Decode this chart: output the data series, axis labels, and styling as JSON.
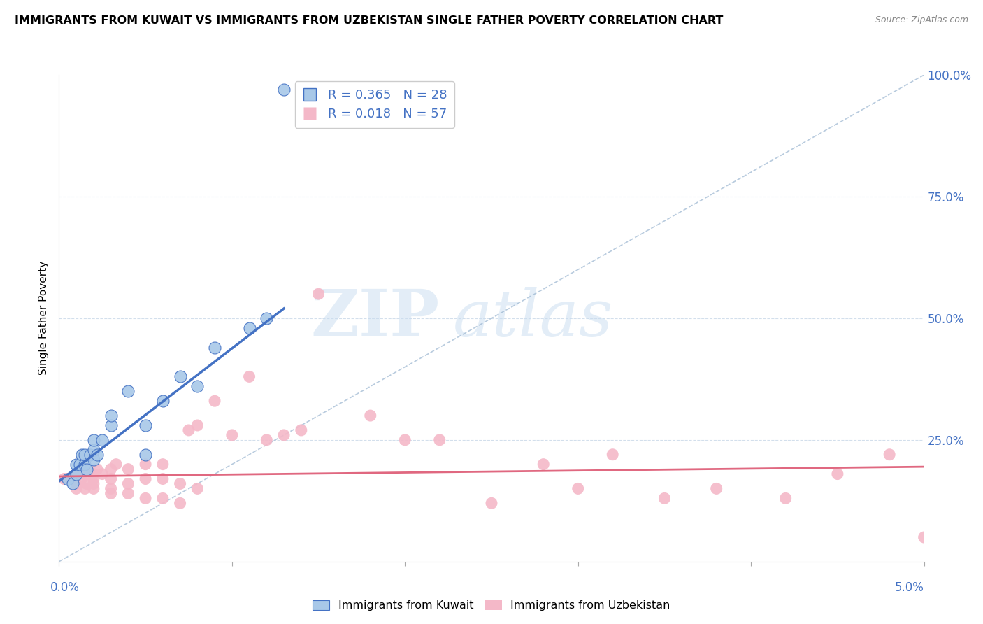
{
  "title": "IMMIGRANTS FROM KUWAIT VS IMMIGRANTS FROM UZBEKISTAN SINGLE FATHER POVERTY CORRELATION CHART",
  "source": "Source: ZipAtlas.com",
  "ylabel": "Single Father Poverty",
  "color_kuwait": "#a8c8e8",
  "color_uzbekistan": "#f4b8c8",
  "color_kuwait_line": "#4472c4",
  "color_uzbekistan_line": "#e06880",
  "color_blue_text": "#4472c4",
  "watermark_zip": "ZIP",
  "watermark_atlas": "atlas",
  "kuwait_x": [
    0.0005,
    0.0008,
    0.001,
    0.001,
    0.0012,
    0.0013,
    0.0015,
    0.0015,
    0.0016,
    0.0018,
    0.002,
    0.002,
    0.002,
    0.0022,
    0.0025,
    0.003,
    0.003,
    0.004,
    0.005,
    0.005,
    0.006,
    0.007,
    0.008,
    0.009,
    0.011,
    0.012,
    0.013,
    0.014
  ],
  "kuwait_y": [
    0.17,
    0.16,
    0.18,
    0.2,
    0.2,
    0.22,
    0.2,
    0.22,
    0.19,
    0.22,
    0.21,
    0.23,
    0.25,
    0.22,
    0.25,
    0.28,
    0.3,
    0.35,
    0.22,
    0.28,
    0.33,
    0.38,
    0.36,
    0.44,
    0.48,
    0.5,
    0.97,
    0.97
  ],
  "uzbekistan_x": [
    0.0003,
    0.0005,
    0.0006,
    0.0007,
    0.001,
    0.001,
    0.001,
    0.0012,
    0.0013,
    0.0015,
    0.0016,
    0.0017,
    0.002,
    0.002,
    0.002,
    0.002,
    0.0022,
    0.0025,
    0.003,
    0.003,
    0.003,
    0.003,
    0.0033,
    0.004,
    0.004,
    0.004,
    0.005,
    0.005,
    0.005,
    0.006,
    0.006,
    0.006,
    0.007,
    0.007,
    0.0075,
    0.008,
    0.008,
    0.009,
    0.01,
    0.011,
    0.012,
    0.013,
    0.014,
    0.015,
    0.018,
    0.02,
    0.022,
    0.025,
    0.028,
    0.03,
    0.032,
    0.035,
    0.038,
    0.042,
    0.045,
    0.048,
    0.05
  ],
  "uzbekistan_y": [
    0.17,
    0.17,
    0.17,
    0.17,
    0.15,
    0.16,
    0.18,
    0.18,
    0.17,
    0.15,
    0.16,
    0.18,
    0.15,
    0.16,
    0.17,
    0.18,
    0.19,
    0.18,
    0.14,
    0.15,
    0.17,
    0.19,
    0.2,
    0.14,
    0.16,
    0.19,
    0.13,
    0.17,
    0.2,
    0.13,
    0.17,
    0.2,
    0.12,
    0.16,
    0.27,
    0.15,
    0.28,
    0.33,
    0.26,
    0.38,
    0.25,
    0.26,
    0.27,
    0.55,
    0.3,
    0.25,
    0.25,
    0.12,
    0.2,
    0.15,
    0.22,
    0.13,
    0.15,
    0.13,
    0.18,
    0.22,
    0.05
  ],
  "xlim": [
    0.0,
    0.05
  ],
  "ylim": [
    0.0,
    1.0
  ],
  "yticks": [
    0.0,
    0.25,
    0.5,
    0.75,
    1.0
  ],
  "ytick_labels": [
    "",
    "25.0%",
    "50.0%",
    "75.0%",
    "100.0%"
  ],
  "xtick_minor": [
    0.01,
    0.02,
    0.03,
    0.04
  ]
}
